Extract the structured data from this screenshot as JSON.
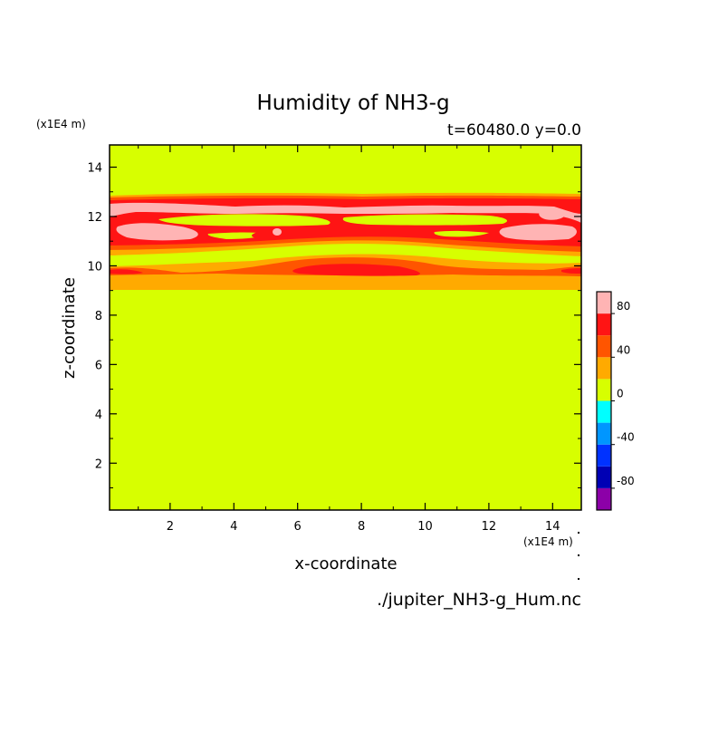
{
  "chart_data": {
    "type": "heatmap",
    "title": "Humidity of NH3-g",
    "subtitle": "t=60480.0 y=0.0",
    "xlabel": "x-coordinate",
    "ylabel": "z-coordinate",
    "x_unit": "(x1E4 m)",
    "y_unit": "(x1E4 m)",
    "xlim": [
      0.1,
      14.9
    ],
    "ylim": [
      0.1,
      14.9
    ],
    "x_ticks": [
      "2",
      "4",
      "6",
      "8",
      "10",
      "12",
      "14"
    ],
    "y_ticks": [
      "2",
      "4",
      "6",
      "8",
      "10",
      "12",
      "14"
    ],
    "background_level": "0 to 20",
    "colorbar": {
      "levels": [
        -100,
        -80,
        -60,
        -40,
        -20,
        0,
        20,
        40,
        60,
        80,
        100
      ],
      "colors": [
        "#8c00a8",
        "#0000b4",
        "#0032ff",
        "#0096ff",
        "#00ffff",
        "#d7ff00",
        "#ffaa00",
        "#ff5500",
        "#ff1414",
        "#ffb4b4"
      ],
      "tick_labels": [
        "-80",
        "-40",
        "0",
        "40",
        "80"
      ]
    },
    "bands": [
      {
        "z": [
          9.0,
          9.3
        ],
        "level": "20 to 40"
      },
      {
        "z": [
          9.3,
          10.3
        ],
        "level": "20 to 80, patchy"
      },
      {
        "z": [
          10.3,
          11.0
        ],
        "level": "0 to 40"
      },
      {
        "z": [
          11.0,
          12.8
        ],
        "level": "40 to 100, layered"
      }
    ]
  },
  "source_file": "./jupiter_NH3-g_Hum.nc"
}
